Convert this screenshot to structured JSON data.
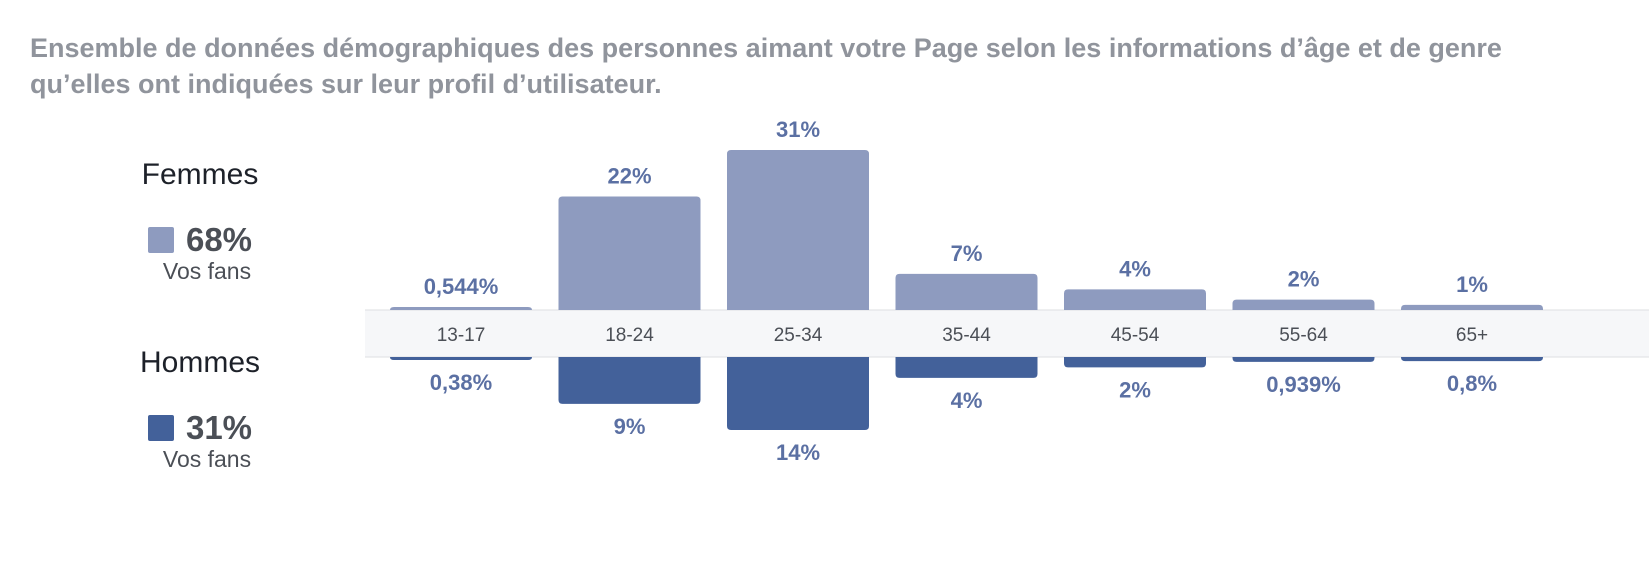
{
  "description": "Ensemble de données démographiques des personnes aimant votre Page selon les informations d’âge et de genre qu’elles ont indiquées sur leur profil d’utilisateur.",
  "legend": {
    "women": {
      "label": "Femmes",
      "percent": "68%",
      "caption": "Vos fans",
      "color": "#8e9bbf"
    },
    "men": {
      "label": "Hommes",
      "percent": "31%",
      "caption": "Vos fans",
      "color": "#43619a"
    }
  },
  "chart_data": {
    "type": "bar",
    "categories": [
      "13-17",
      "18-24",
      "25-34",
      "35-44",
      "45-54",
      "55-64",
      "65+"
    ],
    "series": [
      {
        "name": "Femmes",
        "direction": "up",
        "color": "#8e9bbf",
        "values": [
          0.544,
          22,
          31,
          7,
          4,
          2,
          1
        ],
        "labels": [
          "0,544%",
          "22%",
          "31%",
          "7%",
          "4%",
          "2%",
          "1%"
        ]
      },
      {
        "name": "Hommes",
        "direction": "down",
        "color": "#43619a",
        "values": [
          0.38,
          9,
          14,
          4,
          2,
          0.939,
          0.8
        ],
        "labels": [
          "0,38%",
          "9%",
          "14%",
          "4%",
          "2%",
          "0,939%",
          "0,8%"
        ]
      }
    ],
    "label_color": "#5b70a3",
    "axis_color": "#4b4f56"
  }
}
